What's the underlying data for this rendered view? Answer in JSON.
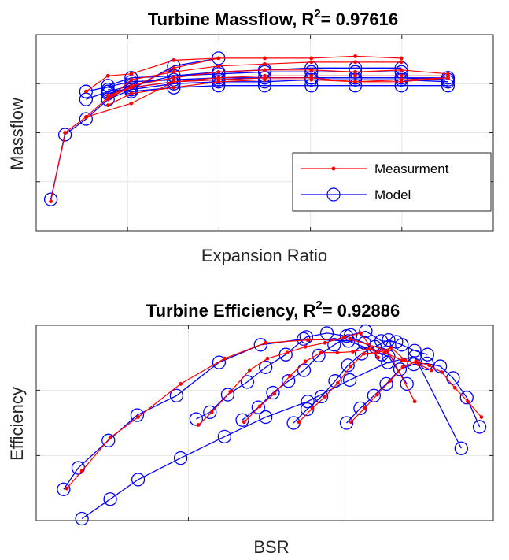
{
  "chart_data": [
    {
      "type": "line",
      "title_main": "Turbine Massflow, R",
      "title_sup": "2",
      "title_tail": "= 0.97616",
      "xlabel": "Expansion Ratio",
      "ylabel": "Massflow",
      "xlim": [
        0,
        10
      ],
      "ylim": [
        0,
        10
      ],
      "grid": true,
      "legend": {
        "placement": "lower-right",
        "entries": [
          {
            "label": "Measurment",
            "color": "#ff0000",
            "marker": "dot"
          },
          {
            "label": "Model",
            "color": "#0000ff",
            "marker": "circle"
          }
        ]
      },
      "series": [
        {
          "kind": "measurement",
          "color": "#ff0000",
          "x": [
            0.32,
            0.63,
            1.09,
            1.57,
            2.08,
            3.01,
            3.99
          ],
          "y": [
            1.5,
            5.0,
            5.8,
            6.8,
            7.3,
            8.3,
            8.8
          ]
        },
        {
          "kind": "measurement",
          "color": "#ff0000",
          "x": [
            1.09,
            1.57,
            2.08,
            3.01,
            3.99,
            5.0,
            6.02,
            6.98,
            7.99
          ],
          "y": [
            7.1,
            7.9,
            8.0,
            8.7,
            8.8,
            8.8,
            8.8,
            8.9,
            8.8
          ]
        },
        {
          "kind": "measurement",
          "color": "#ff0000",
          "x": [
            1.57,
            2.08,
            3.01,
            3.99,
            5.0,
            6.02,
            6.98,
            7.99
          ],
          "y": [
            6.7,
            7.7,
            8.1,
            8.4,
            8.5,
            8.6,
            8.6,
            8.6
          ]
        },
        {
          "kind": "measurement",
          "color": "#ff0000",
          "x": [
            1.57,
            2.08,
            3.01,
            3.99,
            5.0,
            6.02,
            6.98,
            7.99,
            9.01
          ],
          "y": [
            6.7,
            7.4,
            7.8,
            8.1,
            8.2,
            8.2,
            8.1,
            8.2,
            8.0
          ]
        },
        {
          "kind": "measurement",
          "color": "#ff0000",
          "x": [
            1.57,
            2.08,
            3.01,
            3.99,
            5.0,
            6.02,
            6.98,
            7.99,
            9.01
          ],
          "y": [
            6.9,
            7.3,
            7.6,
            7.8,
            7.9,
            7.9,
            7.9,
            7.9,
            7.9
          ]
        },
        {
          "kind": "measurement",
          "color": "#ff0000",
          "x": [
            1.09,
            2.08,
            3.01,
            3.99,
            5.0,
            6.02,
            6.98,
            7.99,
            9.01
          ],
          "y": [
            5.8,
            6.5,
            7.6,
            7.7,
            7.8,
            7.8,
            7.6,
            7.7,
            7.8
          ]
        },
        {
          "kind": "measurement",
          "color": "#ff0000",
          "x": [
            1.57,
            2.08,
            3.01,
            3.99,
            5.0,
            6.02,
            6.98,
            7.99,
            9.01
          ],
          "y": [
            6.4,
            7.0,
            7.3,
            7.6,
            7.7,
            7.7,
            7.6,
            7.6,
            7.8
          ]
        },
        {
          "kind": "model",
          "color": "#0000ff",
          "x": [
            0.32,
            0.63,
            1.09,
            1.57,
            2.08,
            3.01,
            3.99
          ],
          "y": [
            1.6,
            4.9,
            5.7,
            6.7,
            7.2,
            8.4,
            8.8
          ]
        },
        {
          "kind": "model",
          "color": "#0000ff",
          "x": [
            1.09,
            1.57,
            2.08,
            3.01,
            3.99,
            5.0,
            6.02,
            6.98,
            7.99
          ],
          "y": [
            6.7,
            7.1,
            7.4,
            7.9,
            8.1,
            8.2,
            8.3,
            8.3,
            8.3
          ]
        },
        {
          "kind": "model",
          "color": "#0000ff",
          "x": [
            1.57,
            2.08,
            3.01,
            3.99,
            5.0,
            6.02,
            6.98,
            7.99
          ],
          "y": [
            7.4,
            7.8,
            7.9,
            8.0,
            8.1,
            8.1,
            8.1,
            8.1
          ]
        },
        {
          "kind": "model",
          "color": "#0000ff",
          "x": [
            1.57,
            2.08,
            3.01,
            3.99,
            5.0,
            6.02,
            6.98,
            7.99,
            9.01
          ],
          "y": [
            7.0,
            7.3,
            7.6,
            7.7,
            7.8,
            7.8,
            7.8,
            7.8,
            7.8
          ]
        },
        {
          "kind": "model",
          "color": "#0000ff",
          "x": [
            1.57,
            2.08,
            3.01,
            3.99,
            5.0,
            6.02,
            6.98,
            7.99,
            9.01
          ],
          "y": [
            7.0,
            7.2,
            7.5,
            7.6,
            7.6,
            7.7,
            7.7,
            7.7,
            7.6
          ]
        },
        {
          "kind": "model",
          "color": "#0000ff",
          "x": [
            1.09,
            2.08,
            3.01,
            3.99,
            5.0,
            6.02,
            6.98,
            7.99,
            9.01
          ],
          "y": [
            7.1,
            7.6,
            7.7,
            7.8,
            7.8,
            7.8,
            7.8,
            7.8,
            7.7
          ]
        },
        {
          "kind": "model",
          "color": "#0000ff",
          "x": [
            1.57,
            2.08,
            3.01,
            3.99,
            5.0,
            6.02,
            6.98,
            7.99,
            9.01
          ],
          "y": [
            7.2,
            7.1,
            7.3,
            7.4,
            7.4,
            7.4,
            7.4,
            7.4,
            7.4
          ]
        }
      ]
    },
    {
      "type": "line",
      "title_main": "Turbine Efficiency, R",
      "title_sup": "2",
      "title_tail": "= 0.92886",
      "xlabel": "BSR",
      "ylabel": "Efficiency",
      "xlim": [
        0,
        10
      ],
      "ylim": [
        0,
        10
      ],
      "grid": true,
      "series": [
        {
          "kind": "measurement",
          "color": "#ff0000",
          "x": [
            0.67,
            1.0,
            1.62,
            2.23,
            3.16,
            4.12,
            5.02,
            5.94,
            6.86,
            7.69,
            8.28
          ],
          "y": [
            1.65,
            2.55,
            4.25,
            5.3,
            7.0,
            8.3,
            9.1,
            9.25,
            9.3,
            8.7,
            6.1
          ]
        },
        {
          "kind": "measurement",
          "color": "#ff0000",
          "x": [
            3.55,
            3.84,
            4.25,
            4.67,
            5.06,
            5.49,
            5.89,
            6.32,
            6.73,
            7.1,
            7.48
          ],
          "y": [
            4.9,
            5.55,
            6.6,
            7.7,
            8.3,
            8.6,
            8.9,
            9.1,
            9.4,
            9.6,
            8.35
          ]
        },
        {
          "kind": "measurement",
          "color": "#ff0000",
          "x": [
            4.55,
            4.89,
            5.21,
            5.55,
            5.89,
            6.23,
            6.59,
            6.93,
            7.27,
            7.63,
            8.0
          ],
          "y": [
            5.05,
            5.85,
            6.5,
            7.4,
            8.15,
            8.6,
            8.6,
            8.65,
            8.8,
            8.6,
            8.2
          ]
        },
        {
          "kind": "measurement",
          "color": "#ff0000",
          "x": [
            5.75,
            6.04,
            6.32,
            6.6,
            6.88,
            7.17,
            7.47,
            7.77,
            8.07,
            8.36,
            8.65
          ],
          "y": [
            5.05,
            5.75,
            6.35,
            7.05,
            7.9,
            8.55,
            8.6,
            8.85,
            8.2,
            8.0,
            7.7
          ]
        },
        {
          "kind": "measurement",
          "color": "#ff0000",
          "x": [
            6.89,
            7.18,
            7.46,
            7.74,
            8.02,
            8.31,
            8.6,
            8.87,
            9.16,
            9.44,
            9.74
          ],
          "y": [
            5.05,
            5.75,
            6.45,
            7.15,
            7.85,
            8.15,
            7.95,
            7.6,
            6.8,
            6.1,
            5.3
          ]
        },
        {
          "kind": "model",
          "color": "#0000ff",
          "x": [
            0.6,
            0.92,
            1.58,
            2.21,
            3.07,
            4.0,
            4.91,
            5.85,
            6.83,
            7.71,
            8.11
          ],
          "y": [
            1.6,
            2.7,
            4.1,
            5.4,
            6.4,
            8.1,
            9.0,
            9.3,
            9.2,
            8.4,
            7.0
          ]
        },
        {
          "kind": "model",
          "color": "#0000ff",
          "x": [
            3.5,
            3.8,
            4.19,
            4.62,
            5.02,
            5.46,
            5.91,
            6.36,
            6.79,
            7.18,
            7.56
          ],
          "y": [
            5.2,
            5.55,
            6.45,
            7.1,
            7.85,
            8.5,
            9.4,
            9.6,
            9.45,
            9.1,
            8.5
          ]
        },
        {
          "kind": "model",
          "color": "#0000ff",
          "x": [
            4.51,
            4.86,
            5.18,
            5.52,
            5.86,
            6.18,
            6.52,
            6.88,
            7.21,
            7.55,
            7.88
          ],
          "y": [
            5.15,
            5.8,
            6.55,
            7.15,
            7.7,
            8.45,
            9.0,
            9.5,
            9.7,
            9.2,
            9.15
          ]
        },
        {
          "kind": "model",
          "color": "#0000ff",
          "x": [
            5.63,
            5.93,
            6.24,
            6.54,
            6.82,
            7.12,
            7.41,
            7.71,
            8.0,
            8.28,
            8.56
          ],
          "y": [
            5.0,
            5.7,
            6.35,
            7.15,
            7.95,
            8.55,
            8.9,
            9.25,
            9.0,
            8.7,
            8.5
          ]
        },
        {
          "kind": "model",
          "color": "#0000ff",
          "x": [
            6.79,
            7.09,
            7.39,
            7.66,
            7.96,
            8.26,
            8.55,
            8.84,
            9.12,
            9.42,
            9.7
          ],
          "y": [
            5.0,
            5.75,
            6.4,
            7.0,
            7.75,
            8.0,
            8.05,
            7.9,
            7.3,
            6.3,
            4.8
          ]
        },
        {
          "kind": "model",
          "color": "#0000ff",
          "x": [
            1.0,
            1.62,
            2.23,
            3.16,
            4.12,
            5.02,
            5.94,
            6.86,
            7.69,
            8.28,
            9.3
          ],
          "y": [
            0.1,
            1.1,
            2.1,
            3.2,
            4.3,
            5.3,
            6.1,
            7.2,
            8.1,
            8.4,
            3.7
          ]
        }
      ]
    }
  ]
}
